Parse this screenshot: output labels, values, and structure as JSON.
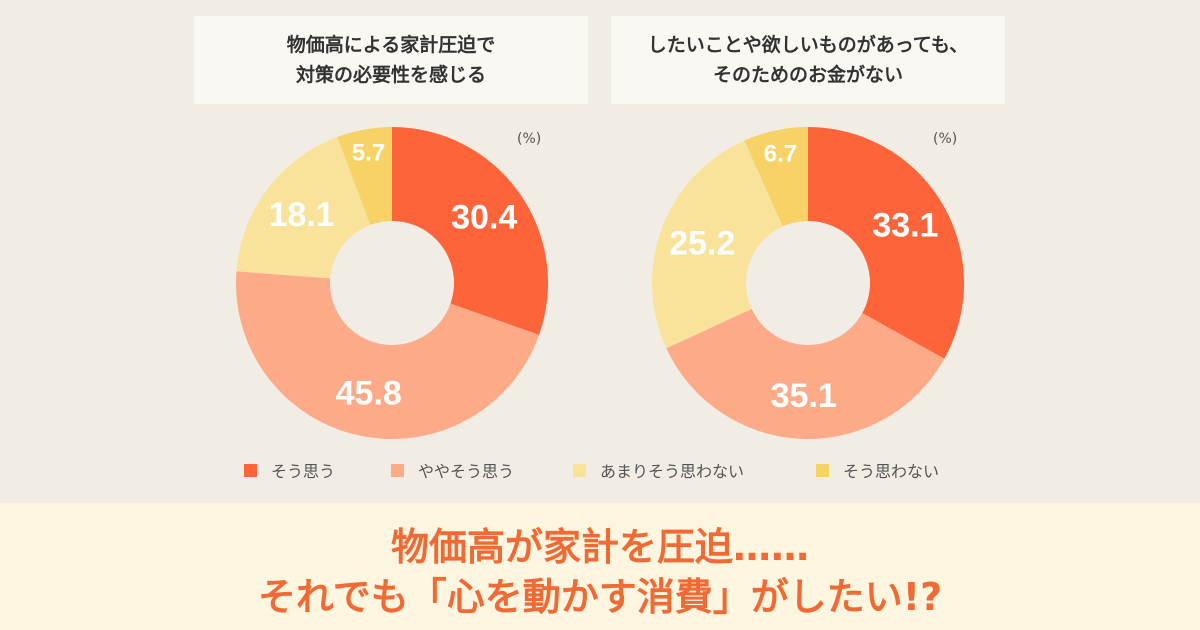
{
  "unit_label": "(%)",
  "colors": {
    "agree": "#fe643a",
    "somewhat_agree": "#fdaa88",
    "not_really": "#f9e29a",
    "disagree": "#f7d266"
  },
  "chart_data": [
    {
      "type": "pie",
      "title_lines": [
        "物価高による家計圧迫で",
        "対策の必要性を感じる"
      ],
      "categories": [
        "そう思う",
        "ややそう思う",
        "あまりそう思わない",
        "そう思わない"
      ],
      "values": [
        30.4,
        45.8,
        18.1,
        5.7
      ],
      "value_labels": [
        "30.4",
        "45.8",
        "18.1",
        "5.7"
      ],
      "unit": "(%)"
    },
    {
      "type": "pie",
      "title_lines": [
        "したいことや欲しいものがあっても、",
        "そのためのお金がない"
      ],
      "categories": [
        "そう思う",
        "ややそう思う",
        "あまりそう思わない",
        "そう思わない"
      ],
      "values": [
        33.1,
        35.1,
        25.2,
        6.7
      ],
      "value_labels": [
        "33.1",
        "35.1",
        "25.2",
        "6.7"
      ],
      "unit": "(%)"
    }
  ],
  "legend": [
    {
      "label": "そう思う",
      "color": "#fe643a"
    },
    {
      "label": "ややそう思う",
      "color": "#fdaa88"
    },
    {
      "label": "あまりそう思わない",
      "color": "#f9e29a"
    },
    {
      "label": "そう思わない",
      "color": "#f7d266"
    }
  ],
  "headline": {
    "line1": "物価高が家計を圧迫……",
    "line2": "それでも「心を動かす消費」がしたい!?"
  }
}
